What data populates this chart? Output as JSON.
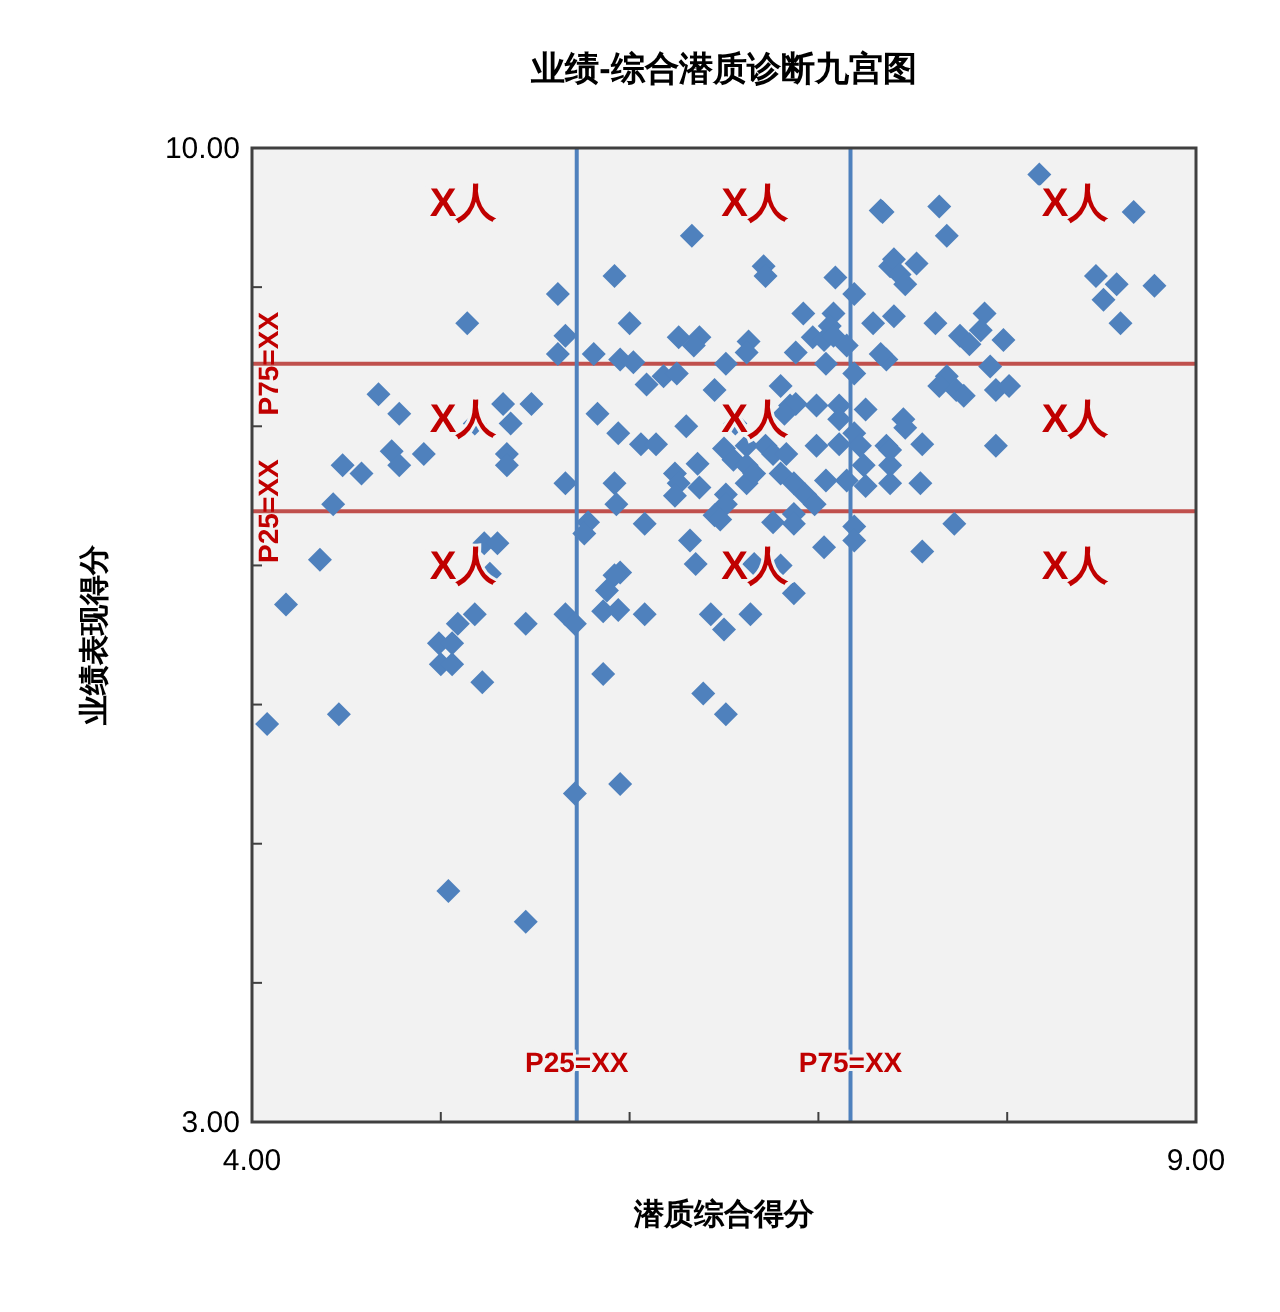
{
  "chart_data": {
    "type": "scatter",
    "title": "业绩-综合潜质诊断九宫图",
    "xlabel": "潜质综合得分",
    "ylabel": "业绩表现得分",
    "xlim": [
      4,
      9
    ],
    "ylim": [
      3,
      10
    ],
    "xticks": [
      {
        "value": 4,
        "label": "4.00"
      },
      {
        "value": 5,
        "label": null
      },
      {
        "value": 6,
        "label": null
      },
      {
        "value": 7,
        "label": null
      },
      {
        "value": 8,
        "label": null
      },
      {
        "value": 9,
        "label": "9.00"
      }
    ],
    "yticks": [
      {
        "value": 3,
        "label": "3.00"
      },
      {
        "value": 4,
        "label": null
      },
      {
        "value": 5,
        "label": null
      },
      {
        "value": 6,
        "label": null
      },
      {
        "value": 7,
        "label": null
      },
      {
        "value": 8,
        "label": null
      },
      {
        "value": 9,
        "label": null
      },
      {
        "value": 10,
        "label": "10.00"
      }
    ],
    "marker": "diamond",
    "series": [
      {
        "color": "#4f81bd",
        "x": [
          5.62,
          5.14,
          5.66,
          5.62,
          4.67,
          4.78,
          5.33,
          5.48,
          5.18,
          5.37,
          4.48,
          4.58,
          4.74,
          4.78,
          4.91,
          5.35,
          5.35,
          5.66,
          4.43,
          4.36,
          5.23,
          5.3,
          4.18,
          5.26,
          5.18,
          5.09,
          4.99,
          5.06,
          5.0,
          5.06,
          5.22,
          5.45,
          5.66,
          4.08,
          4.46,
          5.71,
          5.04,
          5.45,
          6.33,
          5.92,
          6.71,
          6.72,
          7.09,
          7.19,
          6.0,
          6.26,
          6.37,
          6.34,
          6.63,
          6.62,
          6.92,
          7.08,
          7.06,
          6.97,
          7.03,
          7.08,
          7.15,
          7.29,
          7.4,
          7.38,
          7.33,
          5.81,
          5.95,
          6.02,
          6.09,
          6.18,
          6.25,
          6.51,
          6.88,
          7.04,
          7.19,
          7.36,
          6.8,
          6.85,
          6.88,
          6.82,
          6.99,
          7.11,
          7.11,
          7.25,
          5.83,
          5.94,
          6.06,
          6.14,
          6.3,
          6.45,
          6.56,
          6.5,
          6.55,
          6.62,
          6.62,
          6.72,
          6.76,
          6.83,
          6.99,
          7.11,
          7.19,
          7.22,
          7.36,
          7.38,
          5.92,
          5.93,
          6.24,
          6.26,
          6.24,
          6.36,
          6.37,
          6.51,
          6.51,
          6.62,
          6.66,
          6.8,
          6.87,
          6.93,
          6.98,
          7.04,
          7.15,
          7.24,
          7.25,
          7.38,
          5.78,
          5.76,
          6.08,
          6.32,
          6.45,
          6.48,
          6.76,
          6.87,
          6.87,
          7.19,
          7.03,
          7.19,
          6.35,
          6.66,
          6.8,
          6.87,
          5.95,
          5.92,
          5.88,
          5.86,
          5.94,
          6.08,
          5.71,
          6.43,
          6.5,
          6.64,
          5.86,
          6.39,
          6.51,
          5.95,
          8.17,
          8.67,
          7.64,
          7.68,
          7.34,
          7.4,
          7.43,
          7.52,
          7.46,
          8.47,
          8.58,
          8.78,
          8.51,
          8.6,
          7.62,
          7.88,
          7.86,
          7.75,
          7.8,
          7.98,
          7.33,
          7.68,
          7.64,
          7.73,
          7.77,
          7.91,
          7.94,
          8.01,
          7.45,
          7.46,
          7.38,
          7.55,
          7.54,
          7.94,
          7.72,
          7.55
        ],
        "values": [
          8.95,
          8.74,
          8.65,
          8.52,
          8.23,
          8.09,
          8.16,
          8.16,
          8.02,
          8.02,
          7.72,
          7.66,
          7.82,
          7.72,
          7.8,
          7.8,
          7.72,
          7.59,
          7.44,
          7.04,
          7.16,
          7.16,
          6.72,
          6.94,
          6.65,
          6.58,
          6.44,
          6.44,
          6.29,
          6.29,
          6.16,
          6.58,
          6.65,
          5.86,
          5.93,
          5.36,
          4.66,
          4.44,
          9.37,
          9.08,
          9.15,
          9.08,
          9.07,
          8.95,
          8.74,
          8.64,
          8.64,
          8.58,
          8.61,
          8.53,
          8.81,
          8.81,
          8.72,
          8.64,
          8.62,
          8.65,
          8.58,
          8.74,
          8.79,
          9.15,
          9.55,
          8.52,
          8.48,
          8.46,
          8.3,
          8.36,
          8.38,
          8.45,
          8.53,
          8.45,
          8.38,
          8.48,
          8.29,
          8.15,
          8.16,
          8.09,
          8.15,
          8.15,
          8.05,
          8.12,
          8.09,
          7.95,
          7.87,
          7.87,
          8.0,
          8.26,
          8.02,
          7.84,
          7.76,
          7.86,
          7.72,
          7.86,
          7.8,
          7.8,
          7.86,
          7.87,
          7.95,
          7.86,
          7.86,
          7.72,
          7.59,
          7.44,
          7.66,
          7.59,
          7.5,
          7.73,
          7.56,
          7.51,
          7.44,
          7.59,
          7.66,
          7.66,
          7.59,
          7.51,
          7.44,
          7.61,
          7.61,
          7.72,
          7.57,
          7.59,
          7.31,
          7.23,
          7.3,
          7.18,
          7.36,
          7.33,
          7.31,
          7.37,
          7.3,
          7.28,
          7.13,
          7.18,
          7.01,
          7.01,
          7.0,
          6.8,
          6.95,
          6.93,
          6.82,
          6.67,
          6.68,
          6.65,
          6.58,
          6.65,
          6.54,
          6.65,
          6.22,
          6.08,
          5.93,
          5.43,
          9.81,
          9.54,
          9.58,
          9.37,
          9.54,
          9.2,
          9.09,
          9.17,
          9.02,
          9.08,
          9.02,
          9.01,
          8.91,
          8.74,
          8.74,
          8.81,
          8.69,
          8.65,
          8.59,
          8.62,
          8.52,
          8.36,
          8.29,
          8.26,
          8.22,
          8.43,
          8.26,
          8.29,
          8.05,
          7.99,
          7.83,
          7.87,
          7.59,
          7.86,
          7.3,
          7.1
        ]
      }
    ],
    "ref_lines": [
      {
        "axis": "y",
        "value": 8.45,
        "label": "P75=XX",
        "color": "#c0504d"
      },
      {
        "axis": "y",
        "value": 7.39,
        "label": "P25=XX",
        "color": "#c0504d"
      },
      {
        "axis": "x",
        "value": 5.72,
        "label": "P25=XX",
        "color": "#4f81bd"
      },
      {
        "axis": "x",
        "value": 7.17,
        "label": "P75=XX",
        "color": "#4f81bd"
      }
    ],
    "annotations": [
      "X人",
      "X人",
      "X人",
      "X人",
      "X人",
      "X人",
      "X人",
      "X人",
      "X人"
    ]
  }
}
